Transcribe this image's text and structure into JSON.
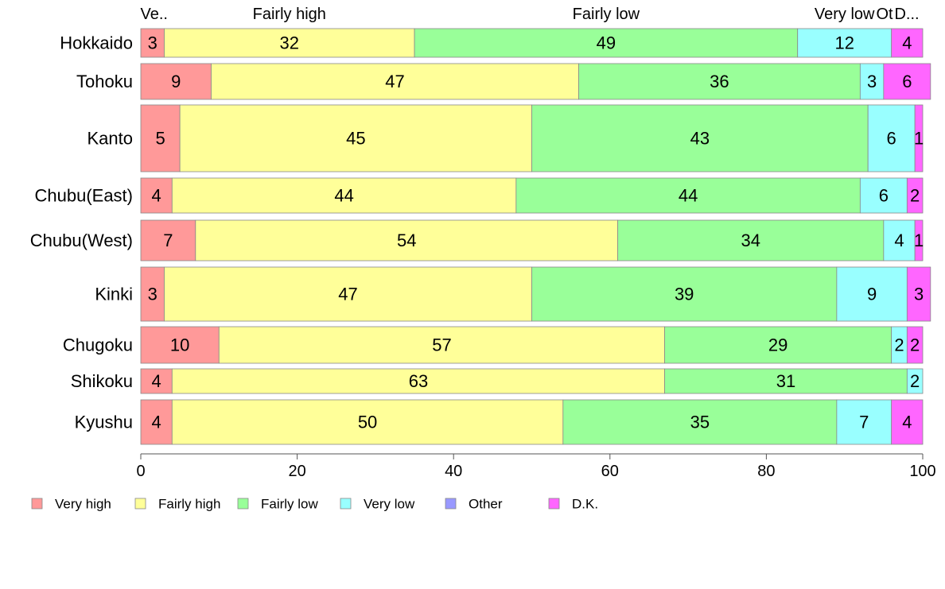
{
  "chart_data": {
    "type": "bar",
    "orientation": "horizontal",
    "stacked": true,
    "categories": [
      "Hokkaido",
      "Tohoku",
      "Kanto",
      "Chubu(East)",
      "Chubu(West)",
      "Kinki",
      "Chugoku",
      "Shikoku",
      "Kyushu"
    ],
    "series": [
      {
        "name": "Very high",
        "color": "#ff9999",
        "values": [
          3,
          9,
          5,
          4,
          7,
          3,
          10,
          4,
          4
        ]
      },
      {
        "name": "Fairly high",
        "color": "#ffff99",
        "values": [
          32,
          47,
          45,
          44,
          54,
          47,
          57,
          63,
          50
        ]
      },
      {
        "name": "Fairly low",
        "color": "#99ff99",
        "values": [
          49,
          36,
          43,
          44,
          34,
          39,
          29,
          31,
          35
        ]
      },
      {
        "name": "Very low",
        "color": "#99ffff",
        "values": [
          12,
          3,
          6,
          6,
          4,
          9,
          2,
          2,
          7
        ]
      },
      {
        "name": "Other",
        "color": "#9999ff",
        "values": [
          0,
          0,
          0,
          0,
          0,
          0,
          0,
          0,
          0
        ]
      },
      {
        "name": "D.K.",
        "color": "#ff66ff",
        "values": [
          4,
          6,
          1,
          2,
          1,
          3,
          2,
          0,
          4
        ]
      }
    ],
    "top_labels": [
      "Ve..",
      "Fairly high",
      "Fairly low",
      "Very low",
      "Ot",
      "D..."
    ],
    "xlim": [
      0,
      100
    ],
    "xticks": [
      "0",
      "20",
      "40",
      "60",
      "80",
      "100"
    ],
    "xlabel": "",
    "ylabel": "",
    "title": "",
    "grid": false,
    "legend_position": "bottom-left"
  }
}
